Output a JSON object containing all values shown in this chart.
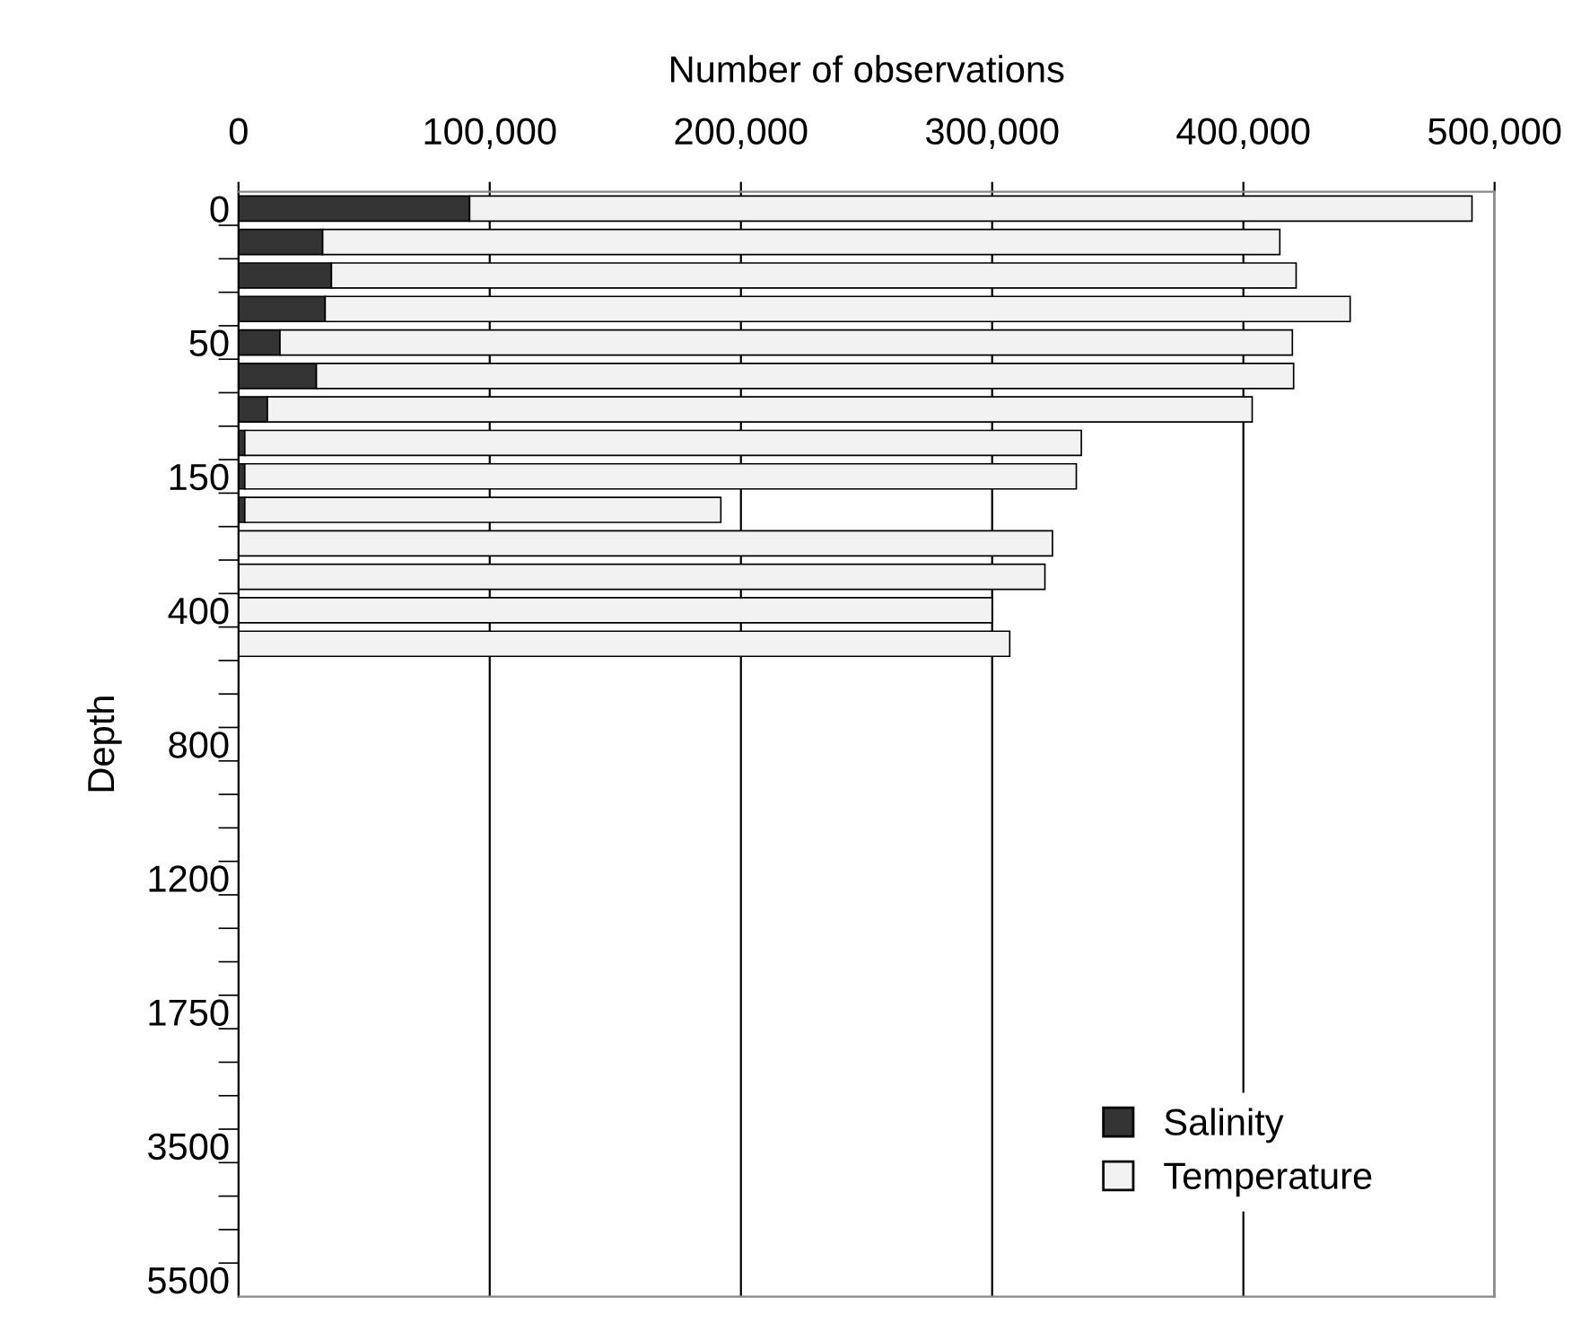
{
  "chart_data": {
    "type": "bar",
    "orientation": "horizontal",
    "stacked": true,
    "xlabel": "Number of observations",
    "ylabel": "Depth",
    "categories": [
      "0",
      null,
      null,
      null,
      "50",
      null,
      null,
      null,
      "150",
      null,
      null,
      null,
      "400",
      null,
      null,
      null,
      "800",
      null,
      null,
      null,
      "1200",
      null,
      null,
      null,
      "1750",
      null,
      null,
      null,
      "3500",
      null,
      null,
      null,
      "5500"
    ],
    "series": [
      {
        "name": "Salinity",
        "color": "#333333",
        "values": [
          92000,
          33500,
          37000,
          34500,
          16500,
          31000,
          11500,
          2500,
          2500,
          2500,
          null,
          null,
          null,
          null,
          null,
          null,
          null,
          null,
          null,
          null,
          null,
          null,
          null,
          null,
          null,
          null,
          null,
          null,
          null,
          null,
          null,
          null,
          null
        ]
      },
      {
        "name": "Temperature",
        "color": "#f2f2f2",
        "values": [
          399000,
          381000,
          384000,
          408000,
          403000,
          389000,
          392000,
          333000,
          331000,
          189500,
          324000,
          321000,
          300000,
          307000,
          null,
          null,
          null,
          null,
          null,
          null,
          null,
          null,
          null,
          null,
          null,
          null,
          null,
          null,
          null,
          null,
          null,
          null,
          null
        ]
      }
    ],
    "xlim": [
      0,
      500000
    ],
    "xticks": [
      0,
      {
        "value": 100000,
        "label": "100,000"
      },
      {
        "value": 200000,
        "label": "200,000"
      },
      {
        "value": 300000,
        "label": "300,000"
      },
      {
        "value": 400000,
        "label": "400,000"
      },
      {
        "value": 500000,
        "label": "500,000"
      }
    ],
    "grid": "x",
    "legend": "bottom right"
  }
}
